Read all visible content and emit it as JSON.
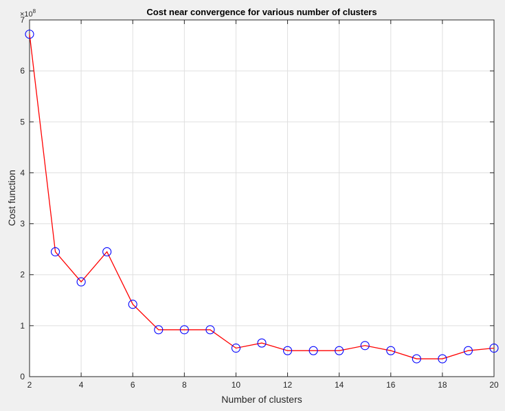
{
  "chart_data": {
    "type": "line",
    "title": "Cost near convergence for various number of clusters",
    "xlabel": "Number of clusters",
    "ylabel": "Cost function",
    "y_exponent_base": "×10",
    "y_exponent_power": "8",
    "xlim": [
      2,
      20
    ],
    "ylim": [
      0,
      7
    ],
    "x_ticks": [
      2,
      4,
      6,
      8,
      10,
      12,
      14,
      16,
      18,
      20
    ],
    "y_ticks": [
      0,
      1,
      2,
      3,
      4,
      5,
      6,
      7
    ],
    "grid": true,
    "line_color": "#ff0000",
    "marker_color": "#0000ff",
    "marker": "circle",
    "series": [
      {
        "x": [
          2,
          3,
          4,
          5,
          6,
          7,
          8,
          9,
          10,
          11,
          12,
          13,
          14,
          15,
          16,
          17,
          18,
          19,
          20
        ],
        "y": [
          6.72,
          2.45,
          1.86,
          2.45,
          1.42,
          0.92,
          0.92,
          0.92,
          0.56,
          0.66,
          0.51,
          0.51,
          0.51,
          0.61,
          0.51,
          0.35,
          0.35,
          0.51,
          0.56
        ]
      }
    ]
  }
}
